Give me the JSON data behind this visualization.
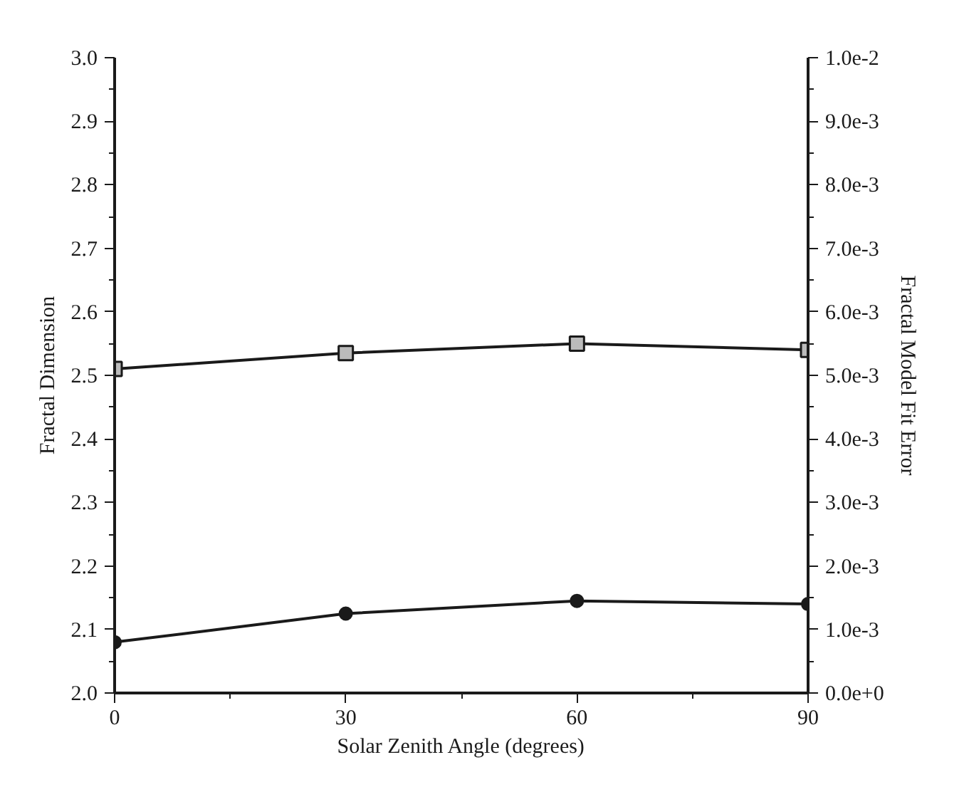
{
  "chart_data": {
    "type": "line",
    "xlabel": "Solar Zenith Angle (degrees)",
    "ylabel": "Fractal Dimension",
    "y2label": "Fractal Model Fit Error",
    "x": [
      0,
      30,
      60,
      90
    ],
    "series": [
      {
        "color": "#1a1a1a",
        "marker": "square",
        "values": [
          2.51,
          2.535,
          2.55,
          2.54
        ]
      },
      {
        "color": "#1a1a1a",
        "marker": "circle",
        "axis": "y2",
        "values": [
          0.0008,
          0.00125,
          0.00145,
          0.0014
        ]
      }
    ],
    "xlim": [
      0,
      90
    ],
    "xticks": [
      0,
      30,
      60,
      90
    ],
    "ylim": [
      2.0,
      3.0
    ],
    "yticks": [
      {
        "value": 2.0,
        "label": "2.0"
      },
      2.1,
      2.2,
      2.3,
      2.4,
      2.5,
      2.6,
      2.7,
      2.8,
      2.9,
      {
        "value": 3.0,
        "label": "3.0"
      }
    ],
    "y2lim": [
      0,
      0.01
    ],
    "y2ticks": [
      {
        "value": 0,
        "label": "0.0e+0"
      },
      {
        "value": 0.001,
        "label": "1.0e-3"
      },
      {
        "value": 0.002,
        "label": "2.0e-3"
      },
      {
        "value": 0.003,
        "label": "3.0e-3"
      },
      {
        "value": 0.004,
        "label": "4.0e-3"
      },
      {
        "value": 0.005,
        "label": "5.0e-3"
      },
      {
        "value": 0.006,
        "label": "6.0e-3"
      },
      {
        "value": 0.007,
        "label": "7.0e-3"
      },
      {
        "value": 0.008,
        "label": "8.0e-3"
      },
      {
        "value": 0.009,
        "label": "9.0e-3"
      },
      {
        "value": 0.01,
        "label": "1.0e-2"
      }
    ],
    "grid": false
  }
}
